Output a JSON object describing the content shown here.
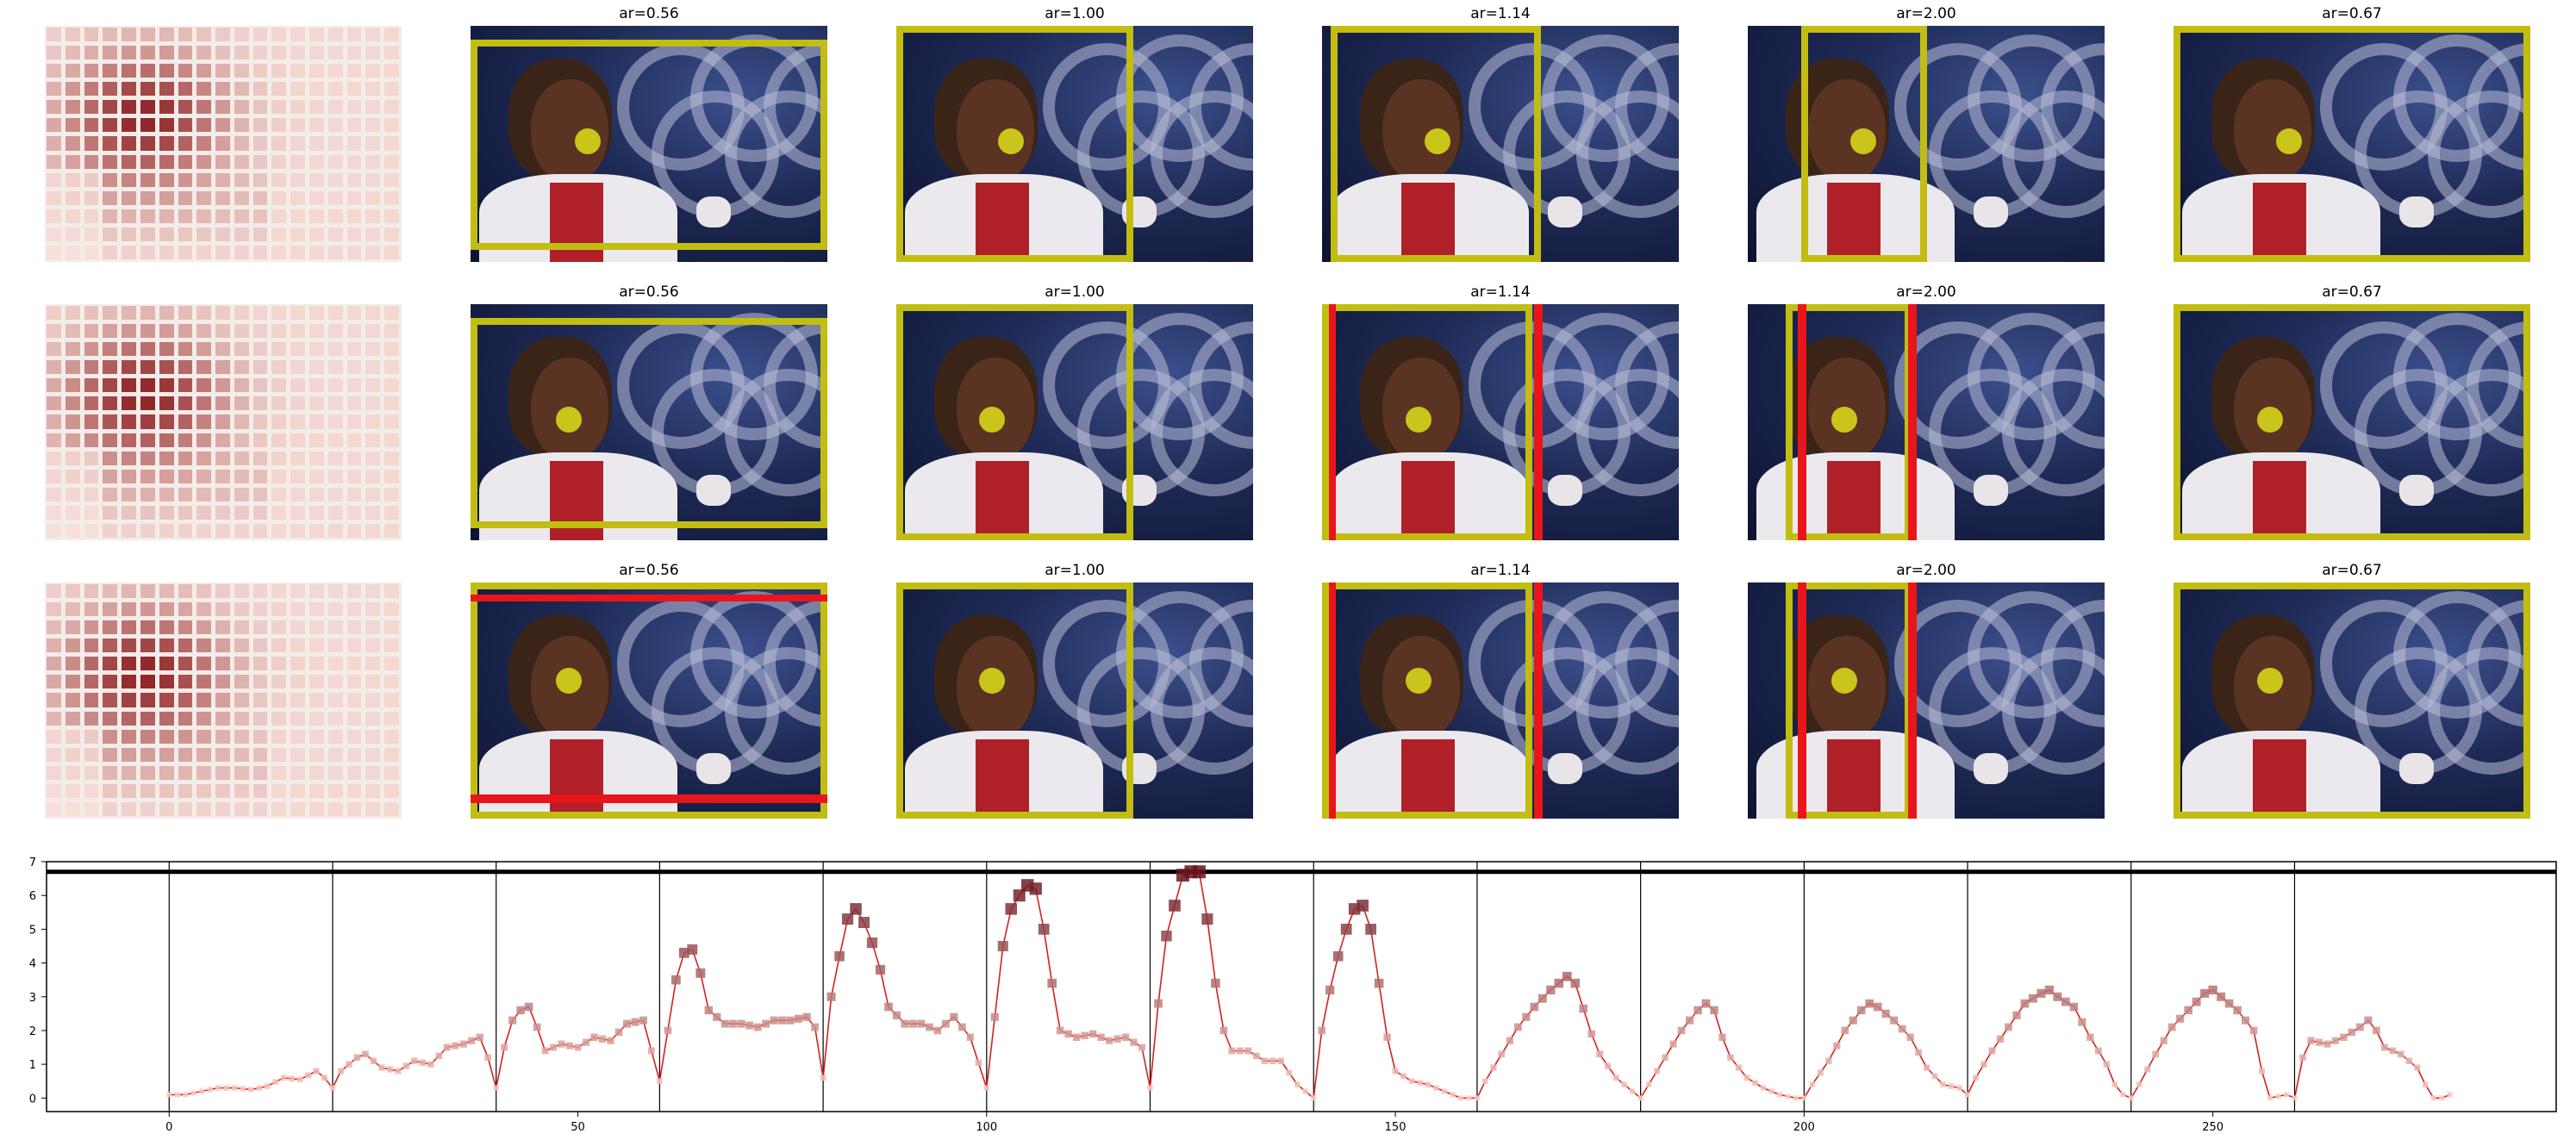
{
  "panel_titles": [
    "ar=0.56",
    "ar=1.00",
    "ar=1.14",
    "ar=2.00",
    "ar=0.67"
  ],
  "colors": {
    "frame": "#c2bd12",
    "red_box": "#e8161b",
    "dot": "#c9c51a",
    "line": "#d62020",
    "vline": "#000000"
  },
  "chart_data": {
    "type": "line",
    "title": "",
    "xlabel": "",
    "ylabel": "",
    "xlim": [
      -15,
      292
    ],
    "ylim": [
      -0.4,
      7
    ],
    "xticks": [
      0,
      50,
      100,
      150,
      200,
      250
    ],
    "yticks": [
      0,
      1,
      2,
      3,
      4,
      5,
      6,
      7
    ],
    "hline": 6.7,
    "vlines": [
      0,
      20,
      40,
      60,
      80,
      100,
      120,
      140,
      160,
      180,
      200,
      220,
      240,
      260
    ],
    "anchors": [
      [
        0,
        0.1
      ],
      [
        2,
        0.1
      ],
      [
        4,
        0.2
      ],
      [
        6,
        0.3
      ],
      [
        8,
        0.3
      ],
      [
        10,
        0.25
      ],
      [
        12,
        0.35
      ],
      [
        14,
        0.6
      ],
      [
        16,
        0.55
      ],
      [
        18,
        0.8
      ],
      [
        19,
        0.6
      ],
      [
        20,
        0.3
      ],
      [
        21,
        0.8
      ],
      [
        23,
        1.2
      ],
      [
        24,
        1.3
      ],
      [
        26,
        0.9
      ],
      [
        28,
        0.8
      ],
      [
        30,
        1.1
      ],
      [
        32,
        1.0
      ],
      [
        34,
        1.5
      ],
      [
        36,
        1.6
      ],
      [
        38,
        1.8
      ],
      [
        39,
        1.2
      ],
      [
        40,
        0.3
      ],
      [
        41,
        1.5
      ],
      [
        42,
        2.3
      ],
      [
        43,
        2.6
      ],
      [
        44,
        2.7
      ],
      [
        45,
        2.1
      ],
      [
        46,
        1.4
      ],
      [
        48,
        1.6
      ],
      [
        50,
        1.5
      ],
      [
        52,
        1.8
      ],
      [
        54,
        1.7
      ],
      [
        56,
        2.2
      ],
      [
        58,
        2.3
      ],
      [
        60,
        0.5
      ],
      [
        61,
        2.0
      ],
      [
        62,
        3.5
      ],
      [
        63,
        4.3
      ],
      [
        64,
        4.4
      ],
      [
        65,
        3.7
      ],
      [
        66,
        2.6
      ],
      [
        68,
        2.2
      ],
      [
        70,
        2.2
      ],
      [
        72,
        2.1
      ],
      [
        74,
        2.3
      ],
      [
        76,
        2.3
      ],
      [
        78,
        2.4
      ],
      [
        79,
        2.1
      ],
      [
        80,
        0.6
      ],
      [
        81,
        3.0
      ],
      [
        82,
        4.2
      ],
      [
        83,
        5.3
      ],
      [
        84,
        5.6
      ],
      [
        85,
        5.2
      ],
      [
        86,
        4.6
      ],
      [
        87,
        3.8
      ],
      [
        88,
        2.7
      ],
      [
        90,
        2.2
      ],
      [
        92,
        2.2
      ],
      [
        94,
        2.0
      ],
      [
        96,
        2.4
      ],
      [
        98,
        1.8
      ],
      [
        100,
        0.3
      ],
      [
        101,
        2.4
      ],
      [
        102,
        4.5
      ],
      [
        103,
        5.6
      ],
      [
        104,
        6.0
      ],
      [
        105,
        6.3
      ],
      [
        106,
        6.2
      ],
      [
        107,
        5.0
      ],
      [
        108,
        3.4
      ],
      [
        109,
        2.0
      ],
      [
        111,
        1.8
      ],
      [
        113,
        1.9
      ],
      [
        115,
        1.7
      ],
      [
        117,
        1.8
      ],
      [
        119,
        1.5
      ],
      [
        120,
        0.3
      ],
      [
        121,
        2.8
      ],
      [
        122,
        4.8
      ],
      [
        123,
        5.7
      ],
      [
        124,
        6.6
      ],
      [
        125,
        6.7
      ],
      [
        126,
        6.7
      ],
      [
        127,
        5.3
      ],
      [
        128,
        3.4
      ],
      [
        129,
        2.0
      ],
      [
        130,
        1.4
      ],
      [
        132,
        1.4
      ],
      [
        134,
        1.1
      ],
      [
        136,
        1.1
      ],
      [
        138,
        0.4
      ],
      [
        140,
        0.0
      ],
      [
        141,
        2.0
      ],
      [
        142,
        3.2
      ],
      [
        143,
        4.2
      ],
      [
        144,
        5.0
      ],
      [
        145,
        5.6
      ],
      [
        146,
        5.7
      ],
      [
        147,
        5.0
      ],
      [
        148,
        3.4
      ],
      [
        149,
        1.8
      ],
      [
        150,
        0.8
      ],
      [
        152,
        0.5
      ],
      [
        154,
        0.4
      ],
      [
        156,
        0.2
      ],
      [
        158,
        0.0
      ],
      [
        160,
        0.0
      ],
      [
        161,
        0.5
      ],
      [
        163,
        1.3
      ],
      [
        165,
        2.1
      ],
      [
        167,
        2.7
      ],
      [
        169,
        3.2
      ],
      [
        171,
        3.6
      ],
      [
        172,
        3.4
      ],
      [
        174,
        1.9
      ],
      [
        175,
        1.3
      ],
      [
        177,
        0.6
      ],
      [
        179,
        0.2
      ],
      [
        180,
        0.0
      ],
      [
        181,
        0.4
      ],
      [
        183,
        1.2
      ],
      [
        185,
        2.0
      ],
      [
        187,
        2.6
      ],
      [
        188,
        2.8
      ],
      [
        189,
        2.6
      ],
      [
        190,
        1.8
      ],
      [
        191,
        1.2
      ],
      [
        193,
        0.6
      ],
      [
        195,
        0.3
      ],
      [
        197,
        0.1
      ],
      [
        199,
        0.0
      ],
      [
        200,
        0.0
      ],
      [
        201,
        0.4
      ],
      [
        203,
        1.1
      ],
      [
        205,
        2.0
      ],
      [
        207,
        2.6
      ],
      [
        208,
        2.8
      ],
      [
        209,
        2.7
      ],
      [
        211,
        2.3
      ],
      [
        213,
        1.8
      ],
      [
        215,
        0.9
      ],
      [
        217,
        0.4
      ],
      [
        219,
        0.3
      ],
      [
        220,
        0.1
      ],
      [
        221,
        0.6
      ],
      [
        223,
        1.4
      ],
      [
        225,
        2.1
      ],
      [
        227,
        2.8
      ],
      [
        229,
        3.1
      ],
      [
        230,
        3.2
      ],
      [
        231,
        3.0
      ],
      [
        233,
        2.7
      ],
      [
        235,
        1.8
      ],
      [
        237,
        1.0
      ],
      [
        238,
        0.4
      ],
      [
        239,
        0.1
      ],
      [
        240,
        0.0
      ],
      [
        241,
        0.4
      ],
      [
        243,
        1.3
      ],
      [
        245,
        2.1
      ],
      [
        247,
        2.6
      ],
      [
        249,
        3.1
      ],
      [
        250,
        3.2
      ],
      [
        251,
        3.0
      ],
      [
        253,
        2.6
      ],
      [
        255,
        2.0
      ],
      [
        256,
        0.8
      ],
      [
        257,
        0.0
      ],
      [
        259,
        0.1
      ],
      [
        260,
        0.0
      ],
      [
        261,
        1.2
      ],
      [
        262,
        1.7
      ],
      [
        264,
        1.6
      ],
      [
        266,
        1.8
      ],
      [
        268,
        2.1
      ],
      [
        269,
        2.3
      ],
      [
        270,
        2.0
      ],
      [
        271,
        1.5
      ],
      [
        273,
        1.3
      ],
      [
        275,
        0.9
      ],
      [
        276,
        0.4
      ],
      [
        277,
        0.0
      ],
      [
        278,
        0.0
      ],
      [
        279,
        0.1
      ]
    ]
  }
}
